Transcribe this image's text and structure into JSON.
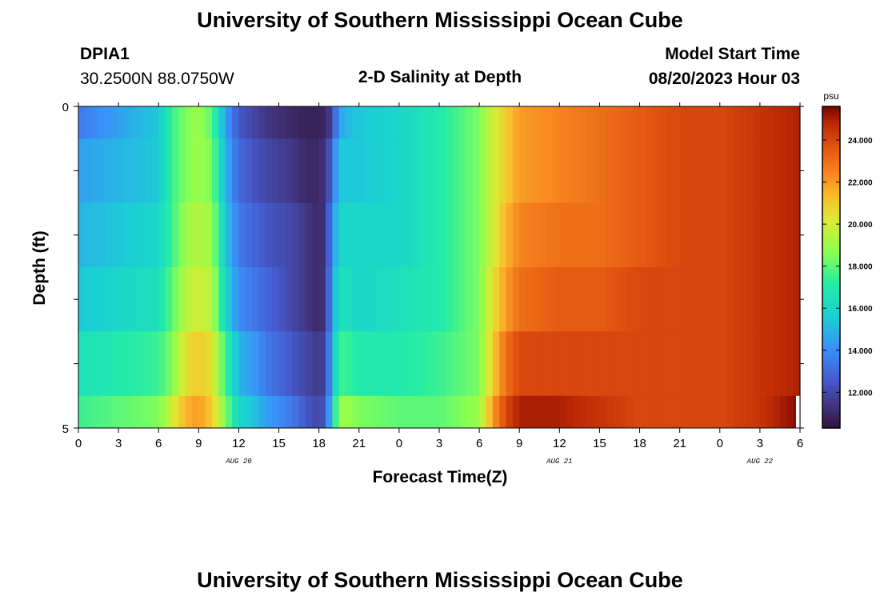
{
  "header": {
    "title": "University of Southern Mississippi Ocean Cube",
    "station": "DPIA1",
    "coords": "30.2500N  88.0750W",
    "plot_title": "2-D Salinity at Depth",
    "model_label": "Model Start Time",
    "model_time": "08/20/2023 Hour 03"
  },
  "footer": {
    "title": "University of Southern Mississippi Ocean Cube"
  },
  "chart_data": {
    "type": "heatmap",
    "xlabel": "Forecast Time(Z)",
    "ylabel": "Depth (ft)",
    "x_tick_labels": [
      "0",
      "3",
      "6",
      "9",
      "12",
      "15",
      "18",
      "21",
      "0",
      "3",
      "6",
      "9",
      "12",
      "15",
      "18",
      "21",
      "0",
      "3",
      "6"
    ],
    "x_range": [
      0,
      54
    ],
    "y_range": [
      0,
      5
    ],
    "y_tick_labels": [
      "0",
      "5"
    ],
    "date_labels": [
      {
        "text": "AUG 20",
        "hour": 12
      },
      {
        "text": "AUG 21",
        "hour": 36
      },
      {
        "text": "AUG 22",
        "hour": 51
      }
    ],
    "depth_bands": [
      0,
      0.5,
      1.5,
      2.5,
      3.5,
      4.5,
      5
    ],
    "time_knots": [
      0,
      3,
      6,
      7,
      8,
      9,
      10,
      11,
      12,
      13,
      14,
      16,
      17,
      18,
      18.5,
      19,
      19.5,
      20,
      21,
      24,
      27,
      30,
      31,
      32,
      33,
      36,
      39,
      42,
      45,
      48,
      51,
      54
    ],
    "salinity": [
      [
        13.5,
        14.5,
        15.5,
        17.5,
        18.5,
        19,
        18,
        14.5,
        12.5,
        12,
        11.5,
        11,
        10.8,
        10.8,
        11,
        12,
        14.5,
        15,
        15.5,
        16,
        17,
        18.5,
        20,
        21,
        22,
        22.5,
        23,
        23.5,
        24,
        24,
        24.5,
        25
      ],
      [
        14.5,
        15,
        15.5,
        17.5,
        18.5,
        19,
        18.5,
        15,
        13,
        12.5,
        12,
        11.5,
        11,
        11,
        11.5,
        13,
        15.5,
        15.5,
        15.5,
        16,
        17,
        18.5,
        20,
        21,
        22,
        22.5,
        23,
        23.5,
        24,
        24,
        24.5,
        25
      ],
      [
        15,
        15.5,
        16,
        17.5,
        19,
        19.5,
        19,
        15.5,
        13.5,
        13,
        12.5,
        12,
        11.5,
        11,
        11.5,
        14,
        16,
        16,
        16,
        16,
        17,
        18.5,
        20,
        21.5,
        22.5,
        23,
        23,
        23.5,
        24,
        24,
        24.5,
        25
      ],
      [
        15.5,
        16,
        16.5,
        18,
        19.5,
        20,
        19.5,
        16,
        14,
        13.5,
        13,
        12,
        11.5,
        11,
        11.5,
        14.5,
        16.5,
        16.5,
        16,
        16.5,
        17,
        18.5,
        20.5,
        22,
        23,
        23.5,
        23.5,
        24,
        24,
        24,
        24.5,
        25
      ],
      [
        16.5,
        17,
        17.5,
        18.5,
        20.5,
        21,
        20.5,
        17.5,
        15,
        14.5,
        13.5,
        12.5,
        12,
        11.5,
        12,
        15,
        17.5,
        17.5,
        17,
        17,
        17.5,
        18.5,
        21,
        23,
        24,
        24,
        24,
        24,
        24,
        24,
        24.5,
        25
      ],
      [
        17.5,
        18,
        18.5,
        20,
        21.5,
        22,
        21,
        18.5,
        16,
        15.5,
        14.5,
        13.5,
        12.5,
        12,
        12.5,
        16,
        19,
        19,
        18.5,
        18,
        18,
        19,
        22,
        24,
        25,
        25,
        24.5,
        24,
        24,
        24,
        24.5,
        25.5
      ]
    ],
    "colorbar": {
      "unit": "psu",
      "range": [
        10.3,
        25.6
      ],
      "ticks": [
        "12.000",
        "14.000",
        "16.000",
        "18.000",
        "20.000",
        "22.000",
        "24.000"
      ]
    }
  }
}
